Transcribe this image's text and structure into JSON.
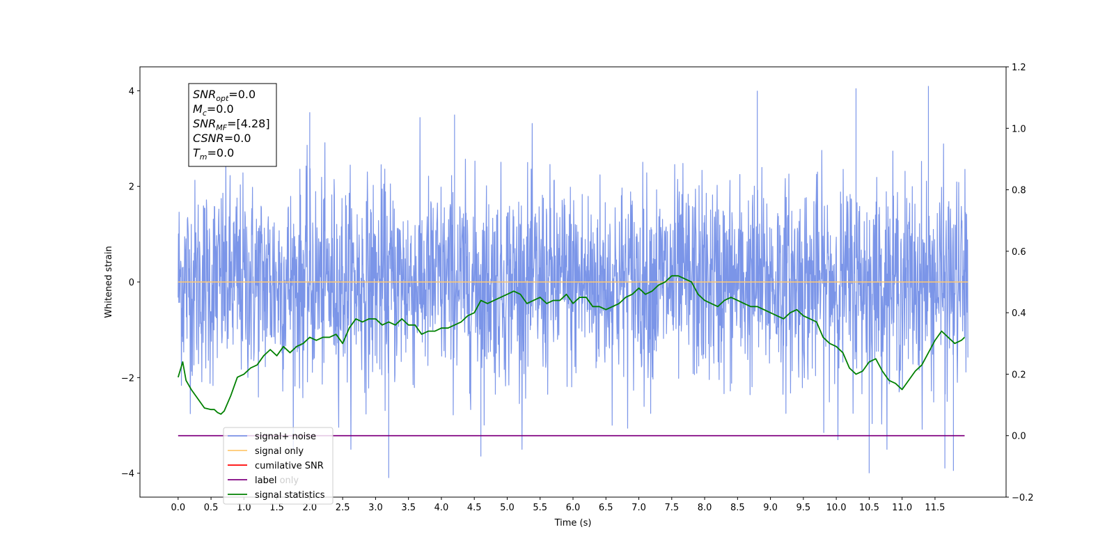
{
  "chart_data": {
    "type": "line",
    "xlabel": "Time (s)",
    "ylabel": "Whitened strain",
    "xlim": [
      -0.58,
      12.58
    ],
    "ylim": [
      -4.5,
      4.5
    ],
    "y2lim": [
      -0.2,
      1.2
    ],
    "x_ticks": [
      "0.0",
      "0.5",
      "1.0",
      "1.5",
      "2.0",
      "2.5",
      "3.0",
      "3.5",
      "4.0",
      "4.5",
      "5.0",
      "5.5",
      "6.0",
      "6.5",
      "7.0",
      "7.5",
      "8.0",
      "8.5",
      "9.0",
      "9.5",
      "10.0",
      "10.5",
      "11.0",
      "11.5"
    ],
    "y_ticks": [
      "−4",
      "−2",
      "0",
      "2",
      "4"
    ],
    "y2_ticks": [
      "−0.2",
      "0.0",
      "0.2",
      "0.4",
      "0.6",
      "0.8",
      "1.0",
      "1.2"
    ],
    "info_box": [
      {
        "base": "SNR",
        "sub": "opt",
        "rest": "=0.0"
      },
      {
        "base": "M",
        "sub": "c",
        "rest": "=0.0"
      },
      {
        "base": "SNR",
        "sub": "MF",
        "rest": "=[4.28]"
      },
      {
        "base": "CSNR",
        "sub": "",
        "rest": "=0.0"
      },
      {
        "base": "T",
        "sub": "m",
        "rest": "=0.0"
      }
    ],
    "legend": {
      "position": "lower-left",
      "entries": [
        {
          "label": "signal+ noise",
          "color": "#7b95e8"
        },
        {
          "label": "signal only",
          "color": "#ffc870"
        },
        {
          "label": "cumilative SNR",
          "color": "#ff0000"
        },
        {
          "label": "label",
          "color": "#800080"
        },
        {
          "label": "signal statistics",
          "color": "#008000"
        }
      ]
    },
    "overlapped_legend_text": "label only",
    "series": [
      {
        "name": "signal+ noise",
        "axis": "left",
        "color": "#7b95e8",
        "x_range": [
          0.0,
          12.0
        ],
        "envelope_y": [
          -2.3,
          2.4
        ],
        "extreme_peaks": [
          4.1,
          4.05,
          4.0,
          3.55,
          3.5
        ],
        "extreme_troughs": [
          -4.1,
          -4.0,
          -3.95,
          -3.9,
          -3.65
        ]
      },
      {
        "name": "signal only",
        "axis": "left",
        "color": "#ffc870",
        "x": [
          0.0,
          12.0
        ],
        "y": [
          0.0,
          0.0
        ]
      },
      {
        "name": "label",
        "axis": "right",
        "color": "#800080",
        "x": [
          0.0,
          11.95
        ],
        "y": [
          0.0,
          0.0
        ]
      },
      {
        "name": "signal statistics",
        "axis": "right",
        "color": "#008000",
        "x": [
          0.0,
          0.07,
          0.12,
          0.2,
          0.3,
          0.4,
          0.5,
          0.55,
          0.6,
          0.65,
          0.7,
          0.8,
          0.9,
          1.0,
          1.1,
          1.2,
          1.3,
          1.4,
          1.5,
          1.6,
          1.7,
          1.8,
          1.9,
          2.0,
          2.1,
          2.2,
          2.3,
          2.4,
          2.5,
          2.6,
          2.7,
          2.8,
          2.9,
          3.0,
          3.1,
          3.2,
          3.3,
          3.4,
          3.5,
          3.6,
          3.7,
          3.8,
          3.9,
          4.0,
          4.1,
          4.2,
          4.3,
          4.4,
          4.5,
          4.6,
          4.7,
          4.8,
          4.9,
          5.0,
          5.1,
          5.2,
          5.3,
          5.4,
          5.5,
          5.6,
          5.7,
          5.8,
          5.9,
          6.0,
          6.1,
          6.2,
          6.3,
          6.4,
          6.5,
          6.6,
          6.7,
          6.8,
          6.9,
          7.0,
          7.1,
          7.2,
          7.3,
          7.4,
          7.5,
          7.6,
          7.7,
          7.8,
          7.9,
          8.0,
          8.1,
          8.2,
          8.3,
          8.4,
          8.5,
          8.6,
          8.7,
          8.8,
          8.9,
          9.0,
          9.1,
          9.2,
          9.3,
          9.4,
          9.5,
          9.6,
          9.7,
          9.8,
          9.9,
          10.0,
          10.1,
          10.2,
          10.3,
          10.4,
          10.5,
          10.6,
          10.7,
          10.8,
          10.9,
          11.0,
          11.1,
          11.2,
          11.3,
          11.4,
          11.5,
          11.6,
          11.7,
          11.8,
          11.9,
          11.95
        ],
        "y": [
          0.19,
          0.24,
          0.18,
          0.15,
          0.12,
          0.09,
          0.085,
          0.085,
          0.075,
          0.07,
          0.08,
          0.13,
          0.19,
          0.2,
          0.22,
          0.23,
          0.26,
          0.28,
          0.26,
          0.29,
          0.27,
          0.29,
          0.3,
          0.32,
          0.31,
          0.32,
          0.32,
          0.33,
          0.3,
          0.35,
          0.38,
          0.37,
          0.38,
          0.38,
          0.36,
          0.37,
          0.36,
          0.38,
          0.36,
          0.36,
          0.33,
          0.34,
          0.34,
          0.35,
          0.35,
          0.36,
          0.37,
          0.39,
          0.4,
          0.44,
          0.43,
          0.44,
          0.45,
          0.46,
          0.47,
          0.46,
          0.43,
          0.44,
          0.45,
          0.43,
          0.44,
          0.44,
          0.46,
          0.43,
          0.45,
          0.45,
          0.42,
          0.42,
          0.41,
          0.42,
          0.43,
          0.45,
          0.46,
          0.48,
          0.46,
          0.47,
          0.49,
          0.5,
          0.52,
          0.52,
          0.51,
          0.5,
          0.46,
          0.44,
          0.43,
          0.42,
          0.44,
          0.45,
          0.44,
          0.43,
          0.42,
          0.42,
          0.41,
          0.4,
          0.39,
          0.38,
          0.4,
          0.41,
          0.39,
          0.38,
          0.37,
          0.32,
          0.3,
          0.29,
          0.27,
          0.22,
          0.2,
          0.21,
          0.24,
          0.25,
          0.21,
          0.18,
          0.17,
          0.15,
          0.18,
          0.21,
          0.23,
          0.27,
          0.31,
          0.34,
          0.32,
          0.3,
          0.31,
          0.32
        ]
      }
    ]
  }
}
